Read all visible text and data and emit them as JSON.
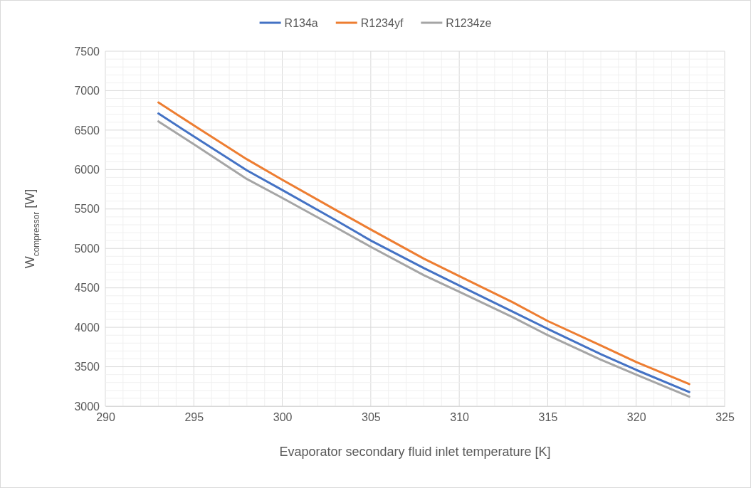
{
  "chart_data": {
    "type": "line",
    "xlabel": "Evaporator secondary fluid inlet temperature [K]",
    "ylabel": "W$_{compressor}$ [W]",
    "x": [
      293,
      295,
      298,
      300,
      303,
      305,
      308,
      310,
      313,
      315,
      318,
      320,
      323
    ],
    "series": [
      {
        "name": "R134a",
        "color": "#4472c4",
        "values": [
          6710,
          6420,
          5990,
          5740,
          5360,
          5100,
          4750,
          4530,
          4200,
          3980,
          3660,
          3460,
          3180
        ]
      },
      {
        "name": "R1234yf",
        "color": "#ed7d31",
        "values": [
          6850,
          6560,
          6130,
          5870,
          5490,
          5240,
          4870,
          4650,
          4320,
          4080,
          3770,
          3560,
          3280
        ]
      },
      {
        "name": "R1234ze",
        "color": "#a5a5a5",
        "values": [
          6610,
          6320,
          5880,
          5640,
          5270,
          5020,
          4660,
          4450,
          4130,
          3900,
          3590,
          3400,
          3120
        ]
      }
    ],
    "xlim": [
      290,
      325
    ],
    "xticks": [
      290,
      {
        "value": 291,
        "label": null
      },
      {
        "value": 292,
        "label": null
      },
      {
        "value": 293,
        "label": null
      },
      {
        "value": 294,
        "label": null
      },
      295,
      {
        "value": 296,
        "label": null
      },
      {
        "value": 297,
        "label": null
      },
      {
        "value": 298,
        "label": null
      },
      {
        "value": 299,
        "label": null
      },
      300,
      {
        "value": 301,
        "label": null
      },
      {
        "value": 302,
        "label": null
      },
      {
        "value": 303,
        "label": null
      },
      {
        "value": 304,
        "label": null
      },
      305,
      {
        "value": 306,
        "label": null
      },
      {
        "value": 307,
        "label": null
      },
      {
        "value": 308,
        "label": null
      },
      {
        "value": 309,
        "label": null
      },
      310,
      {
        "value": 311,
        "label": null
      },
      {
        "value": 312,
        "label": null
      },
      {
        "value": 313,
        "label": null
      },
      {
        "value": 314,
        "label": null
      },
      315,
      {
        "value": 316,
        "label": null
      },
      {
        "value": 317,
        "label": null
      },
      {
        "value": 318,
        "label": null
      },
      {
        "value": 319,
        "label": null
      },
      320,
      {
        "value": 321,
        "label": null
      },
      {
        "value": 322,
        "label": null
      },
      {
        "value": 323,
        "label": null
      },
      {
        "value": 324,
        "label": null
      },
      325
    ],
    "ylim": [
      3000,
      7500
    ],
    "yticks": [
      3000,
      {
        "value": 3100,
        "label": null
      },
      {
        "value": 3200,
        "label": null
      },
      {
        "value": 3300,
        "label": null
      },
      {
        "value": 3400,
        "label": null
      },
      3500,
      {
        "value": 3600,
        "label": null
      },
      {
        "value": 3700,
        "label": null
      },
      {
        "value": 3800,
        "label": null
      },
      {
        "value": 3900,
        "label": null
      },
      4000,
      {
        "value": 4100,
        "label": null
      },
      {
        "value": 4200,
        "label": null
      },
      {
        "value": 4300,
        "label": null
      },
      {
        "value": 4400,
        "label": null
      },
      4500,
      {
        "value": 4600,
        "label": null
      },
      {
        "value": 4700,
        "label": null
      },
      {
        "value": 4800,
        "label": null
      },
      {
        "value": 4900,
        "label": null
      },
      5000,
      {
        "value": 5100,
        "label": null
      },
      {
        "value": 5200,
        "label": null
      },
      {
        "value": 5300,
        "label": null
      },
      {
        "value": 5400,
        "label": null
      },
      5500,
      {
        "value": 5600,
        "label": null
      },
      {
        "value": 5700,
        "label": null
      },
      {
        "value": 5800,
        "label": null
      },
      {
        "value": 5900,
        "label": null
      },
      6000,
      {
        "value": 6100,
        "label": null
      },
      {
        "value": 6200,
        "label": null
      },
      {
        "value": 6300,
        "label": null
      },
      {
        "value": 6400,
        "label": null
      },
      6500,
      {
        "value": 6600,
        "label": null
      },
      {
        "value": 6700,
        "label": null
      },
      {
        "value": 6800,
        "label": null
      },
      {
        "value": 6900,
        "label": null
      },
      7000,
      {
        "value": 7100,
        "label": null
      },
      {
        "value": 7200,
        "label": null
      },
      {
        "value": 7300,
        "label": null
      },
      {
        "value": 7400,
        "label": null
      },
      7500
    ],
    "grid": true,
    "legend": "top",
    "marker": "none",
    "line_style": "solid"
  }
}
